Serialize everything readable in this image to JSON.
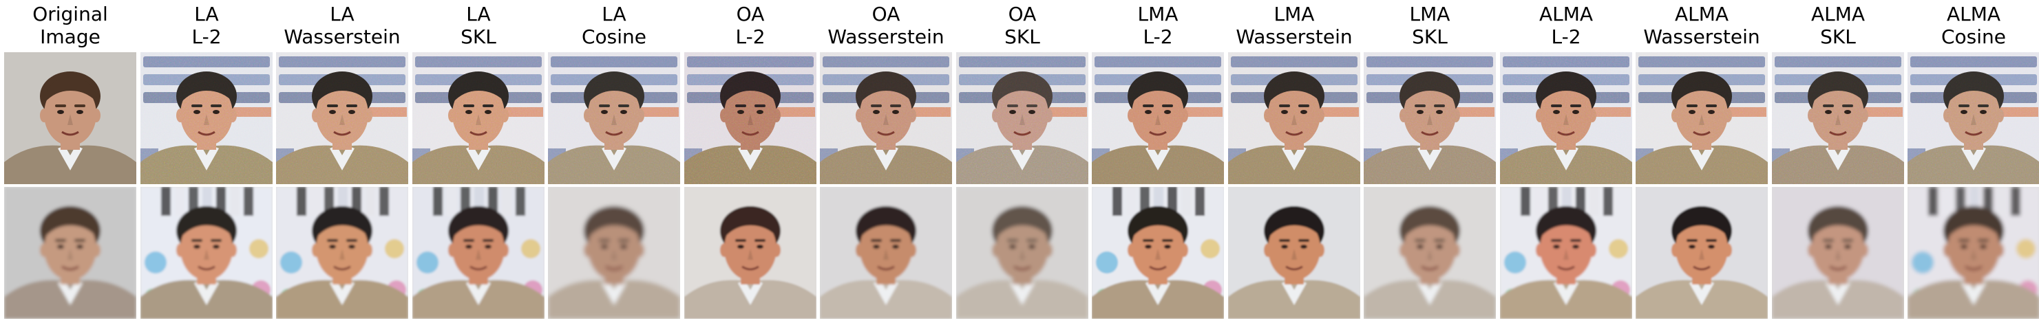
{
  "columns": [
    {
      "line1": "Original",
      "line2": "Image",
      "row0": {
        "bg": "#c9c6c1",
        "face": "#c9987d",
        "hair": "#4b3425",
        "jacket": "#9b8a74",
        "noise": 0.0,
        "blur": 0.0,
        "sign": false
      },
      "row1": {
        "bg": "#c8c8c8",
        "face": "#c59a80",
        "hair": "#4d3a2e",
        "jacket": "#a5968a",
        "noise": 0.0,
        "blur": 2.5,
        "artifacts": false
      }
    },
    {
      "line1": "LA",
      "line2": "L-2",
      "row0": {
        "bg": "#e4e6ec",
        "face": "#d49a7c",
        "hair": "#2f2a26",
        "jacket": "#a2926f",
        "noise": 0.55,
        "blur": 0.0,
        "sign": true
      },
      "row1": {
        "bg": "#e8ebf3",
        "face": "#d79574",
        "hair": "#2a2523",
        "jacket": "#ab9b85",
        "noise": 0.0,
        "blur": 1.6,
        "artifacts": true
      }
    },
    {
      "line1": "LA",
      "line2": "Wasserstein",
      "row0": {
        "bg": "#e6e6ea",
        "face": "#d29b7d",
        "hair": "#2d2824",
        "jacket": "#a5916f",
        "noise": 0.5,
        "blur": 0.0,
        "sign": true
      },
      "row1": {
        "bg": "#e7e8ef",
        "face": "#d4966f",
        "hair": "#282220",
        "jacket": "#b09c80",
        "noise": 0.0,
        "blur": 1.6,
        "artifacts": true
      }
    },
    {
      "line1": "LA",
      "line2": "SKL",
      "row0": {
        "bg": "#e8e6ea",
        "face": "#d49a7a",
        "hair": "#2b2724",
        "jacket": "#a4906f",
        "noise": 0.5,
        "blur": 0.0,
        "sign": true
      },
      "row1": {
        "bg": "#e4e6ee",
        "face": "#d08c6c",
        "hair": "#2b2320",
        "jacket": "#b29f86",
        "noise": 0.0,
        "blur": 1.6,
        "artifacts": true
      }
    },
    {
      "line1": "LA",
      "line2": "Cosine",
      "row0": {
        "bg": "#e5e4ea",
        "face": "#c9987e",
        "hair": "#34302c",
        "jacket": "#a5957a",
        "noise": 0.45,
        "blur": 0.0,
        "sign": true
      },
      "row1": {
        "bg": "#dcd9d8",
        "face": "#b9917a",
        "hair": "#5a4a40",
        "jacket": "#b9ab9c",
        "noise": 0.0,
        "blur": 3.2,
        "artifacts": false
      }
    },
    {
      "line1": "OA",
      "line2": "L-2",
      "row0": {
        "bg": "#e2dce2",
        "face": "#b87c66",
        "hair": "#2d2324",
        "jacket": "#9c8664",
        "noise": 0.6,
        "blur": 0.0,
        "sign": true
      },
      "row1": {
        "bg": "#e0ddda",
        "face": "#cf8b6c",
        "hair": "#3b2722",
        "jacket": "#c0b4a6",
        "noise": 0.0,
        "blur": 1.4,
        "artifacts": false
      }
    },
    {
      "line1": "OA",
      "line2": "Wasserstein",
      "row0": {
        "bg": "#e4e2e4",
        "face": "#c6917a",
        "hair": "#3a302b",
        "jacket": "#a08c6f",
        "noise": 0.5,
        "blur": 0.0,
        "sign": true
      },
      "row1": {
        "bg": "#dad9da",
        "face": "#c68c6c",
        "hair": "#2f2420",
        "jacket": "#c4baae",
        "noise": 0.0,
        "blur": 1.8,
        "artifacts": false
      }
    },
    {
      "line1": "OA",
      "line2": "SKL",
      "row0": {
        "bg": "#e3e2e5",
        "face": "#c39787",
        "hair": "#4a403b",
        "jacket": "#a69785",
        "noise": 0.55,
        "blur": 0.0,
        "sign": true
      },
      "row1": {
        "bg": "#d6d4d3",
        "face": "#b89580",
        "hair": "#62554c",
        "jacket": "#c2b9ae",
        "noise": 0.0,
        "blur": 3.0,
        "artifacts": false
      }
    },
    {
      "line1": "LMA",
      "line2": "L-2",
      "row0": {
        "bg": "#e6e6ea",
        "face": "#cf9074",
        "hair": "#2c2724",
        "jacket": "#9f8a6a",
        "noise": 0.45,
        "blur": 0.0,
        "sign": true
      },
      "row1": {
        "bg": "#e8eaf0",
        "face": "#d4906c",
        "hair": "#25201f",
        "jacket": "#b09d84",
        "noise": 0.0,
        "blur": 1.4,
        "artifacts": true
      }
    },
    {
      "line1": "LMA",
      "line2": "Wasserstein",
      "row0": {
        "bg": "#e6e4e6",
        "face": "#cd9478",
        "hair": "#302a26",
        "jacket": "#a18d6c",
        "noise": 0.45,
        "blur": 0.0,
        "sign": true
      },
      "row1": {
        "bg": "#dfe0e3",
        "face": "#d08d68",
        "hair": "#221c1a",
        "jacket": "#b9ab96",
        "noise": 0.0,
        "blur": 1.4,
        "artifacts": false
      }
    },
    {
      "line1": "LMA",
      "line2": "SKL",
      "row0": {
        "bg": "#e6e5ea",
        "face": "#c8967d",
        "hair": "#3a322d",
        "jacket": "#a39079",
        "noise": 0.5,
        "blur": 0.0,
        "sign": true
      },
      "row1": {
        "bg": "#dcdad9",
        "face": "#c09680",
        "hair": "#5b4b40",
        "jacket": "#c0b6aa",
        "noise": 0.0,
        "blur": 2.6,
        "artifacts": false
      }
    },
    {
      "line1": "ALMA",
      "line2": "L-2",
      "row0": {
        "bg": "#e4e5ec",
        "face": "#cf9376",
        "hair": "#2c2624",
        "jacket": "#a28f6e",
        "noise": 0.55,
        "blur": 0.0,
        "sign": true
      },
      "row1": {
        "bg": "#e9eaf0",
        "face": "#d88a70",
        "hair": "#2a2220",
        "jacket": "#b7a48a",
        "noise": 0.0,
        "blur": 1.6,
        "artifacts": true
      }
    },
    {
      "line1": "ALMA",
      "line2": "Wasserstein",
      "row0": {
        "bg": "#e7e6e8",
        "face": "#cf997c",
        "hair": "#2e2824",
        "jacket": "#a4906f",
        "noise": 0.45,
        "blur": 0.0,
        "sign": true
      },
      "row1": {
        "bg": "#dedee2",
        "face": "#d4906c",
        "hair": "#231d1b",
        "jacket": "#bdae98",
        "noise": 0.0,
        "blur": 1.4,
        "artifacts": false
      }
    },
    {
      "line1": "ALMA",
      "line2": "SKL",
      "row0": {
        "bg": "#e6e6eb",
        "face": "#c9977e",
        "hair": "#36302b",
        "jacket": "#a39079",
        "noise": 0.5,
        "blur": 0.0,
        "sign": true
      },
      "row1": {
        "bg": "#ddd9df",
        "face": "#c49680",
        "hair": "#564840",
        "jacket": "#c1b6ab",
        "noise": 0.0,
        "blur": 2.6,
        "artifacts": false
      }
    },
    {
      "line1": "ALMA",
      "line2": "Cosine",
      "row0": {
        "bg": "#e5e5ec",
        "face": "#c99a7f",
        "hair": "#34302c",
        "jacket": "#a4947a",
        "noise": 0.5,
        "blur": 0.0,
        "sign": true
      },
      "row1": {
        "bg": "#e6e4ea",
        "face": "#c08c72",
        "hair": "#4a3b33",
        "jacket": "#b5a594",
        "noise": 0.0,
        "blur": 3.0,
        "artifacts": true
      }
    }
  ]
}
